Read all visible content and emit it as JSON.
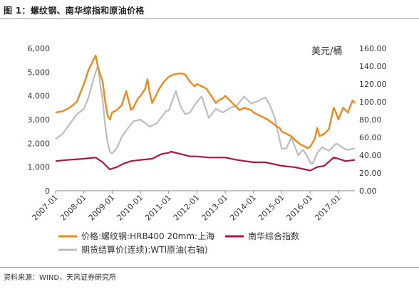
{
  "header": {
    "title": "图 1：螺纹钢、南华综指和原油价格"
  },
  "footer": {
    "source": "资料来源：WIND，天风证券研究所"
  },
  "chart_data": {
    "type": "line",
    "y_unit_right": "美元/桶",
    "x_ticks": [
      "2007-01",
      "2008-01",
      "2009-01",
      "2010-01",
      "2011-01",
      "2012-01",
      "2013-01",
      "2014-01",
      "2015-01",
      "2016-01",
      "2017-01"
    ],
    "y_left_ticks": [
      "0",
      "1,000",
      "2,000",
      "3,000",
      "4,000",
      "5,000",
      "6,000"
    ],
    "y_right_ticks": [
      "0.00",
      "20.00",
      "40.00",
      "60.00",
      "80.00",
      "100.00",
      "120.00",
      "140.00",
      "160.00"
    ],
    "y_left_range": [
      0,
      6000
    ],
    "y_right_range": [
      0,
      160
    ],
    "x_range": [
      "2007-01",
      "2017-08"
    ],
    "grid": false,
    "legend_position": "bottom",
    "colors": {
      "rebar": "#f0891c",
      "nanhua": "#b0153f",
      "wti": "#bdbdbd"
    },
    "series": [
      {
        "name": "价格:螺纹钢:HRB400 20mm:上海",
        "axis": "left",
        "color": "#f0891c",
        "x": [
          "2007-01",
          "2007-04",
          "2007-07",
          "2007-10",
          "2008-01",
          "2008-03",
          "2008-05",
          "2008-06",
          "2008-07",
          "2008-09",
          "2008-10",
          "2008-11",
          "2008-12",
          "2009-01",
          "2009-03",
          "2009-05",
          "2009-07",
          "2009-08",
          "2009-09",
          "2009-10",
          "2009-12",
          "2010-01",
          "2010-03",
          "2010-04",
          "2010-05",
          "2010-06",
          "2010-07",
          "2010-09",
          "2010-11",
          "2010-12",
          "2011-01",
          "2011-03",
          "2011-06",
          "2011-08",
          "2011-10",
          "2011-12",
          "2012-01",
          "2012-03",
          "2012-05",
          "2012-07",
          "2012-09",
          "2012-10",
          "2012-12",
          "2013-01",
          "2013-03",
          "2013-05",
          "2013-07",
          "2013-09",
          "2013-12",
          "2014-01",
          "2014-03",
          "2014-05",
          "2014-07",
          "2014-09",
          "2014-11",
          "2014-12",
          "2015-01",
          "2015-03",
          "2015-05",
          "2015-07",
          "2015-09",
          "2015-11",
          "2015-12",
          "2016-01",
          "2016-03",
          "2016-04",
          "2016-05",
          "2016-07",
          "2016-09",
          "2016-11",
          "2016-12",
          "2017-01",
          "2017-03",
          "2017-05",
          "2017-07",
          "2017-08"
        ],
        "values": [
          3300,
          3350,
          3500,
          3750,
          4500,
          5100,
          5500,
          5700,
          5200,
          4600,
          3800,
          3200,
          3000,
          3300,
          3400,
          3600,
          4200,
          3800,
          3400,
          3500,
          3900,
          4000,
          4300,
          4700,
          4100,
          3700,
          3900,
          4300,
          4600,
          4700,
          4800,
          4900,
          4950,
          4900,
          4600,
          4400,
          4500,
          4400,
          4300,
          4000,
          3700,
          3800,
          3900,
          4000,
          3800,
          3600,
          3400,
          3500,
          3400,
          3300,
          3200,
          3100,
          3000,
          2850,
          2700,
          2650,
          2500,
          2400,
          2300,
          2100,
          1950,
          1850,
          1800,
          1850,
          2200,
          2650,
          2300,
          2400,
          2600,
          3500,
          3300,
          3000,
          3500,
          3300,
          3800,
          3700
        ]
      },
      {
        "name": "南华综合指数",
        "axis": "left",
        "color": "#b0153f",
        "x": [
          "2007-01",
          "2007-06",
          "2008-01",
          "2008-06",
          "2008-09",
          "2008-12",
          "2009-03",
          "2009-06",
          "2009-09",
          "2010-01",
          "2010-06",
          "2010-10",
          "2011-01",
          "2011-02",
          "2011-06",
          "2011-10",
          "2012-01",
          "2012-06",
          "2013-01",
          "2013-06",
          "2014-01",
          "2014-06",
          "2015-01",
          "2015-06",
          "2015-11",
          "2016-01",
          "2016-04",
          "2016-07",
          "2016-11",
          "2017-01",
          "2017-04",
          "2017-08"
        ],
        "values": [
          1250,
          1300,
          1350,
          1400,
          1200,
          900,
          1000,
          1150,
          1250,
          1300,
          1350,
          1550,
          1600,
          1650,
          1550,
          1450,
          1450,
          1400,
          1400,
          1300,
          1200,
          1200,
          1050,
          1000,
          900,
          850,
          1000,
          1050,
          1400,
          1350,
          1250,
          1300
        ]
      },
      {
        "name": "期货结算价(连续):WTI原油(右轴)",
        "axis": "right",
        "color": "#bdbdbd",
        "x": [
          "2007-01",
          "2007-04",
          "2007-07",
          "2007-10",
          "2008-01",
          "2008-03",
          "2008-05",
          "2008-07",
          "2008-08",
          "2008-09",
          "2008-10",
          "2008-11",
          "2008-12",
          "2009-01",
          "2009-03",
          "2009-05",
          "2009-07",
          "2009-10",
          "2010-01",
          "2010-05",
          "2010-08",
          "2010-12",
          "2011-01",
          "2011-04",
          "2011-06",
          "2011-08",
          "2011-10",
          "2012-01",
          "2012-03",
          "2012-06",
          "2012-09",
          "2012-12",
          "2013-03",
          "2013-06",
          "2013-09",
          "2013-12",
          "2014-03",
          "2014-06",
          "2014-08",
          "2014-10",
          "2014-12",
          "2015-01",
          "2015-03",
          "2015-05",
          "2015-08",
          "2015-10",
          "2015-12",
          "2016-01",
          "2016-02",
          "2016-04",
          "2016-06",
          "2016-09",
          "2016-12",
          "2017-01",
          "2017-03",
          "2017-05",
          "2017-07",
          "2017-08"
        ],
        "values": [
          58,
          64,
          75,
          86,
          92,
          105,
          125,
          141,
          118,
          102,
          75,
          55,
          44,
          42,
          48,
          60,
          68,
          78,
          80,
          72,
          76,
          90,
          90,
          112,
          95,
          86,
          88,
          100,
          106,
          82,
          92,
          88,
          93,
          96,
          106,
          98,
          101,
          105,
          96,
          82,
          58,
          47,
          48,
          60,
          40,
          46,
          38,
          32,
          30,
          42,
          49,
          45,
          53,
          52,
          48,
          46,
          47,
          48
        ]
      }
    ]
  }
}
